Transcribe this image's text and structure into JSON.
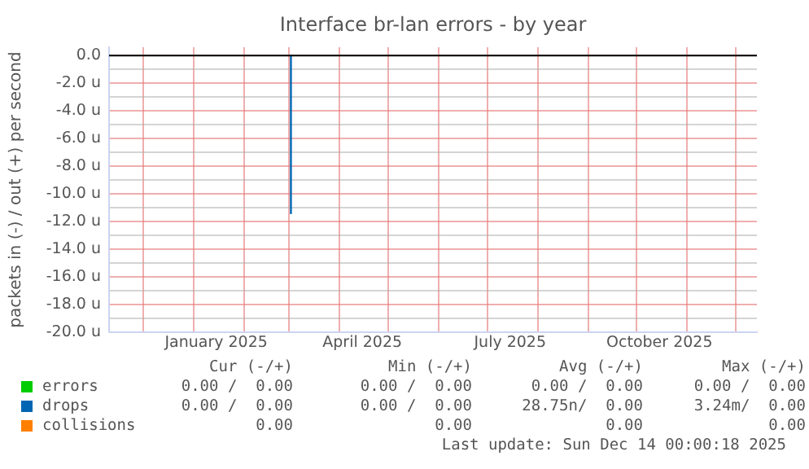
{
  "chart_data": {
    "type": "line",
    "title": "Interface br-lan errors - by year",
    "ylabel": "packets in (-) / out (+) per second",
    "xlim": [
      "2024-11-10",
      "2025-12-14"
    ],
    "xticks": [
      {
        "value": "2024-12-01",
        "label": null
      },
      {
        "value": "2025-01-01",
        "label": null
      },
      {
        "value": "2025-01-15",
        "label": "January 2025"
      },
      {
        "value": "2025-02-01",
        "label": null
      },
      {
        "value": "2025-03-01",
        "label": null
      },
      {
        "value": "2025-04-01",
        "label": null
      },
      {
        "value": "2025-04-15",
        "label": "April 2025"
      },
      {
        "value": "2025-05-01",
        "label": null
      },
      {
        "value": "2025-06-01",
        "label": null
      },
      {
        "value": "2025-07-01",
        "label": null
      },
      {
        "value": "2025-07-15",
        "label": "July 2025"
      },
      {
        "value": "2025-08-01",
        "label": null
      },
      {
        "value": "2025-09-01",
        "label": null
      },
      {
        "value": "2025-10-01",
        "label": null
      },
      {
        "value": "2025-10-15",
        "label": "October 2025"
      },
      {
        "value": "2025-11-01",
        "label": null
      },
      {
        "value": "2025-12-01",
        "label": null
      }
    ],
    "ylim": [
      -20,
      0.6
    ],
    "yticks": [
      {
        "value": 0,
        "label": "0.0"
      },
      {
        "value": -1,
        "label": null
      },
      {
        "value": -2,
        "label": "-2.0 u"
      },
      {
        "value": -3,
        "label": null
      },
      {
        "value": -4,
        "label": "-4.0 u"
      },
      {
        "value": -5,
        "label": null
      },
      {
        "value": -6,
        "label": "-6.0 u"
      },
      {
        "value": -7,
        "label": null
      },
      {
        "value": -8,
        "label": "-8.0 u"
      },
      {
        "value": -9,
        "label": null
      },
      {
        "value": -10,
        "label": "-10.0 u"
      },
      {
        "value": -11,
        "label": null
      },
      {
        "value": -12,
        "label": "-12.0 u"
      },
      {
        "value": -13,
        "label": null
      },
      {
        "value": -14,
        "label": "-14.0 u"
      },
      {
        "value": -15,
        "label": null
      },
      {
        "value": -16,
        "label": "-16.0 u"
      },
      {
        "value": -17,
        "label": null
      },
      {
        "value": -18,
        "label": "-18.0 u"
      },
      {
        "value": -19,
        "label": null
      },
      {
        "value": -20,
        "label": "-20.0 u"
      }
    ],
    "grid": true,
    "legend": "bottom left",
    "marker": "none",
    "line_style": "solid",
    "ref_lines": [
      {
        "axis": "y",
        "value": 0,
        "color": "#000000"
      }
    ],
    "series": [
      {
        "name": "errors",
        "color": "#00cc00"
      },
      {
        "name": "drops",
        "color": "#0066b3",
        "x": [
          "2025-03-02",
          "2025-03-02"
        ],
        "values": [
          0,
          -11.4
        ]
      },
      {
        "name": "collisions",
        "color": "#ff8000"
      }
    ],
    "annotations": [
      "Cur (-/+)",
      "Min (-/+)",
      "Avg (-/+)",
      "Max (-/+)",
      "0.00 /  0.00",
      "0.00 /  0.00",
      "0.00 /  0.00",
      "0.00 /  0.00",
      "0.00 /  0.00",
      "0.00 /  0.00",
      "28.75n/  0.00",
      "3.24m/  0.00",
      "0.00",
      "0.00",
      "0.00",
      "0.00",
      "Last update: Sun Dec 14 00:00:18 2025"
    ]
  }
}
